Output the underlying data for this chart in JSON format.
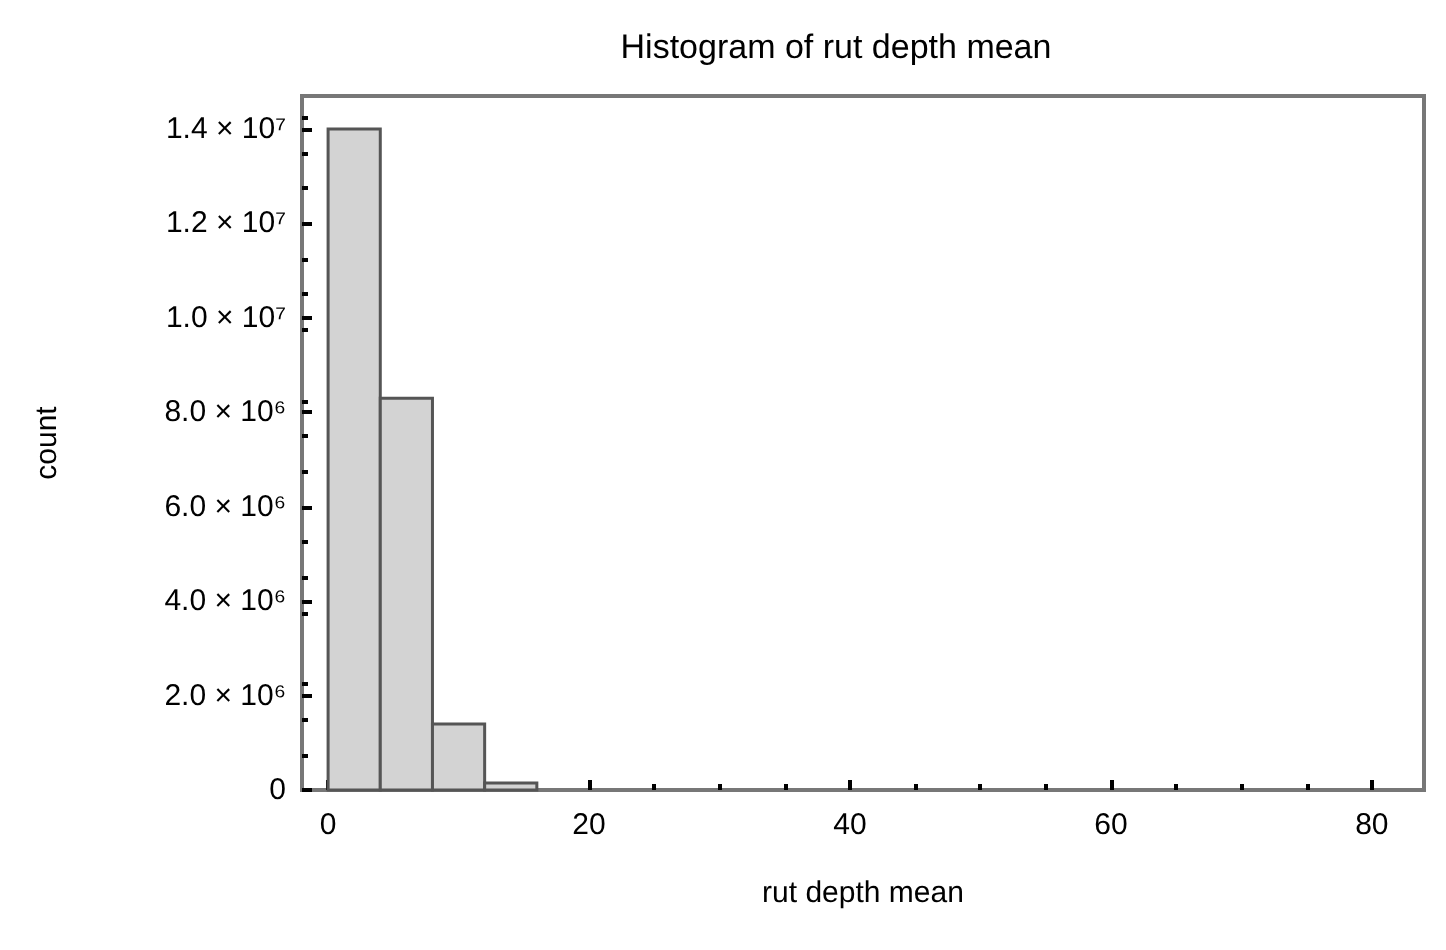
{
  "chart_data": {
    "type": "histogram",
    "title": "Histogram of rut depth mean",
    "xlabel": "rut depth mean",
    "ylabel": "count",
    "bins": [
      0,
      4,
      8,
      12,
      16
    ],
    "values": [
      14000000,
      8300000,
      1400000,
      150000
    ],
    "color": "#d3d3d3",
    "xlim": [
      -2,
      84
    ],
    "xticks": [
      0,
      20,
      40,
      60,
      80
    ],
    "ylim": [
      0,
      14700000
    ],
    "yticks": [
      {
        "value": 0,
        "label": "0"
      },
      {
        "value": 2000000,
        "label": "2.0 × 10⁶"
      },
      {
        "value": 4000000,
        "label": "4.0 × 10⁶"
      },
      {
        "value": 6000000,
        "label": "6.0 × 10⁶"
      },
      {
        "value": 8000000,
        "label": "8.0 × 10⁶"
      },
      {
        "value": 10000000,
        "label": "1.0 × 10⁷"
      },
      {
        "value": 12000000,
        "label": "1.2 × 10⁷"
      },
      {
        "value": 14000000,
        "label": "1.4 × 10⁷"
      }
    ],
    "grid": false
  }
}
